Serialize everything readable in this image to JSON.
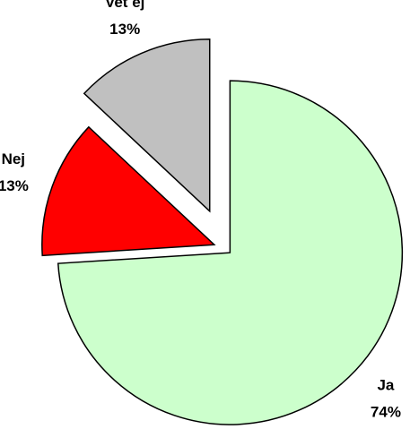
{
  "chart_data": {
    "type": "pie",
    "categories": [
      "Ja",
      "Nej",
      "Vet ej"
    ],
    "values": [
      74,
      13,
      13
    ],
    "value_labels": [
      "74%",
      "13%",
      "13%"
    ],
    "colors": [
      "#ccffcc",
      "#ff0000",
      "#c0c0c0"
    ]
  }
}
